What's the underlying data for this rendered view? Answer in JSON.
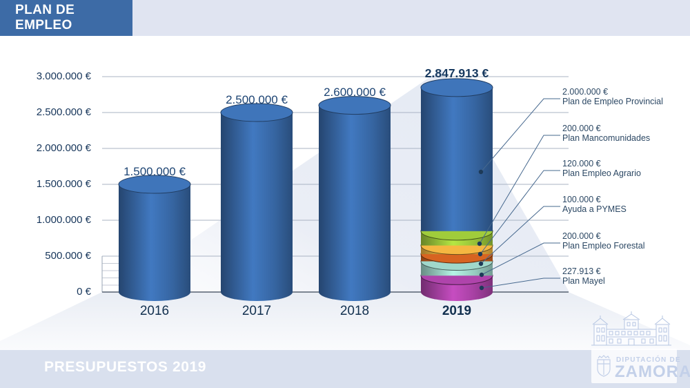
{
  "header": {
    "title": "PLAN DE EMPLEO"
  },
  "footer": {
    "title": "PRESUPUESTOS 2019",
    "logo": {
      "line1": "DIPUTACIÓN DE",
      "line2": "ZAMORA"
    }
  },
  "chart_data": {
    "type": "bar",
    "title": "Plan de Empleo",
    "categories": [
      "2016",
      "2017",
      "2018",
      "2019"
    ],
    "values": [
      1500000,
      2500000,
      2600000,
      2847913
    ],
    "value_labels": [
      "1.500.000 €",
      "2.500.000 €",
      "2.600.000 €",
      "2.847.913 €"
    ],
    "ylim": [
      0,
      3000000
    ],
    "ytick_labels": [
      "3.000.000 €",
      "2.500.000 €",
      "2.000.000 €",
      "1.500.000 €",
      "1.000.000 €",
      "500.000 €",
      "0 €"
    ],
    "grid": true,
    "legend_position": "none",
    "bar_color": "#35639e",
    "breakdown_2019": [
      {
        "label": "Plan de Empleo Provincial",
        "value": 2000000,
        "value_label": "2.000.000 €",
        "color": "#35639e"
      },
      {
        "label": "Plan Mancomunidades",
        "value": 200000,
        "value_label": "200.000 €",
        "color": "#94bd37"
      },
      {
        "label": "Plan Empleo Agrario",
        "value": 120000,
        "value_label": "120.000 €",
        "color": "#e3a93c"
      },
      {
        "label": "Ayuda a PYMES",
        "value": 100000,
        "value_label": "100.000 €",
        "color": "#c75d1f"
      },
      {
        "label": "Plan Empleo Forestal",
        "value": 200000,
        "value_label": "200.000 €",
        "color": "#94c8bc"
      },
      {
        "label": "Plan Mayel",
        "value": 227913,
        "value_label": "227.913 €",
        "color": "#a23f9e"
      }
    ]
  }
}
